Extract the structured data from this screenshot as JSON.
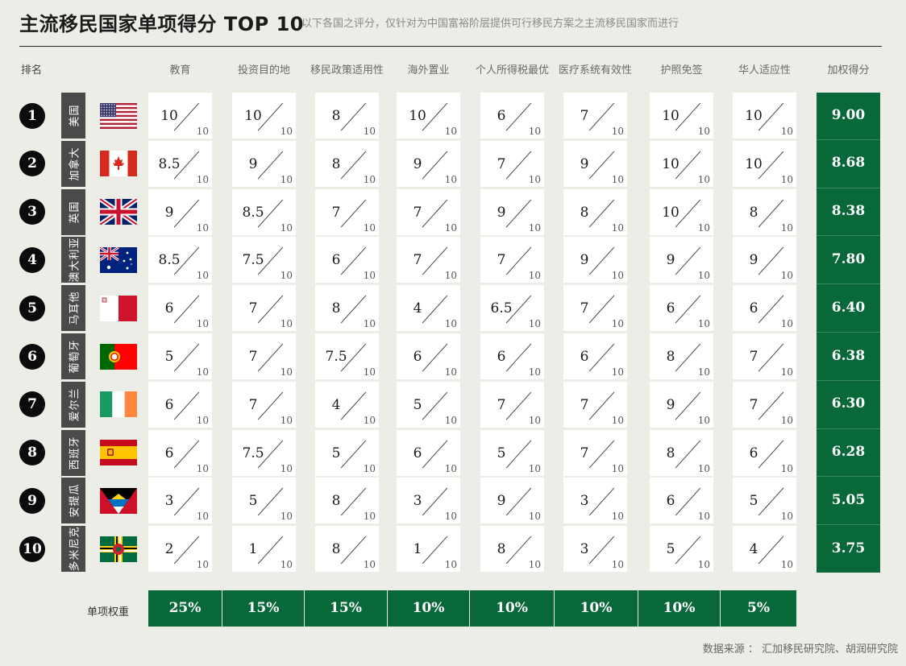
{
  "header": {
    "title": "主流移民国家单项得分 TOP 10",
    "subtitle": "以下各国之评分，仅针对为中国富裕阶层提供可行移民方案之主流移民国家而进行"
  },
  "table": {
    "rank_header": "排名",
    "weighted_header": "加权得分",
    "weight_row_label": "单项权重",
    "denominator": "10"
  },
  "source": "数据来源 ： 汇加移民研究院、胡润研究院",
  "colors": {
    "background": "#ecede7",
    "accent_green": "#09683a",
    "name_tag": "#4a4a4a",
    "rank_badge": "#0b0b0b"
  },
  "chart_data": {
    "type": "table",
    "title": "主流移民国家单项得分 TOP 10",
    "categories": [
      "教育",
      "投资目的地",
      "移民政策适用性",
      "海外置业",
      "个人所得税最优",
      "医疗系统有效性",
      "护照免签",
      "华人适应性"
    ],
    "weights": [
      "25%",
      "15%",
      "15%",
      "10%",
      "10%",
      "10%",
      "10%",
      "5%"
    ],
    "max_score": 10,
    "rows": [
      {
        "rank": "1",
        "country": "美国",
        "flag": "us-flag",
        "scores": [
          "10",
          "10",
          "8",
          "10",
          "6",
          "7",
          "10",
          "10"
        ],
        "weighted": "9.00"
      },
      {
        "rank": "2",
        "country": "加拿大",
        "flag": "canada-flag",
        "scores": [
          "8.5",
          "9",
          "8",
          "9",
          "7",
          "9",
          "10",
          "10"
        ],
        "weighted": "8.68"
      },
      {
        "rank": "3",
        "country": "英国",
        "flag": "uk-flag",
        "scores": [
          "9",
          "8.5",
          "7",
          "7",
          "9",
          "8",
          "10",
          "8"
        ],
        "weighted": "8.38"
      },
      {
        "rank": "4",
        "country": "澳大利亚",
        "flag": "australia-flag",
        "scores": [
          "8.5",
          "7.5",
          "6",
          "7",
          "7",
          "9",
          "9",
          "9"
        ],
        "weighted": "7.80"
      },
      {
        "rank": "5",
        "country": "马耳他",
        "flag": "malta-flag",
        "scores": [
          "6",
          "7",
          "8",
          "4",
          "6.5",
          "7",
          "6",
          "6"
        ],
        "weighted": "6.40"
      },
      {
        "rank": "6",
        "country": "葡萄牙",
        "flag": "portugal-flag",
        "scores": [
          "5",
          "7",
          "7.5",
          "6",
          "6",
          "6",
          "8",
          "7"
        ],
        "weighted": "6.38"
      },
      {
        "rank": "7",
        "country": "爱尔兰",
        "flag": "ireland-flag",
        "scores": [
          "6",
          "7",
          "4",
          "5",
          "7",
          "7",
          "9",
          "7"
        ],
        "weighted": "6.30"
      },
      {
        "rank": "8",
        "country": "西班牙",
        "flag": "spain-flag",
        "scores": [
          "6",
          "7.5",
          "5",
          "6",
          "5",
          "7",
          "8",
          "6"
        ],
        "weighted": "6.28"
      },
      {
        "rank": "9",
        "country": "安提瓜",
        "flag": "antigua-flag",
        "scores": [
          "3",
          "5",
          "8",
          "3",
          "9",
          "3",
          "6",
          "5"
        ],
        "weighted": "5.05"
      },
      {
        "rank": "10",
        "country": "多米尼克",
        "flag": "dominica-flag",
        "scores": [
          "2",
          "1",
          "8",
          "1",
          "8",
          "3",
          "5",
          "4"
        ],
        "weighted": "3.75"
      }
    ]
  }
}
